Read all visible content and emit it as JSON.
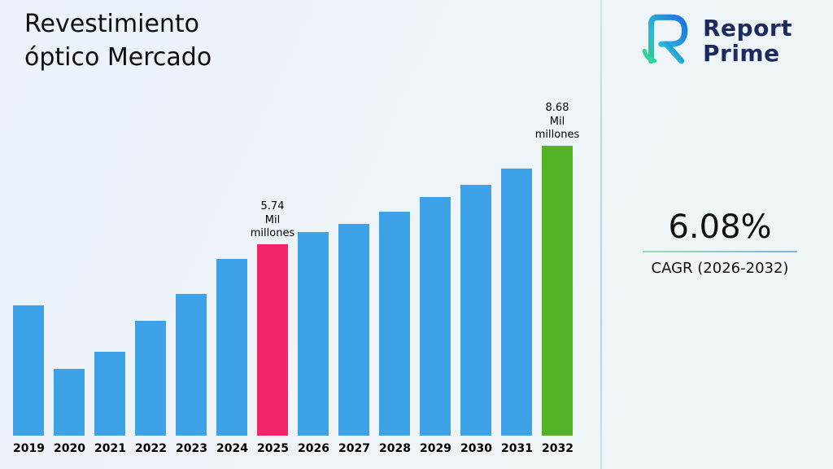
{
  "title": {
    "line1": "Revestimiento",
    "line2": "óptico Mercado"
  },
  "logo": {
    "line1": "Report",
    "line2": "Prime"
  },
  "cagr": {
    "value": "6.08%",
    "label": "CAGR (2026-2032)"
  },
  "chart_data": {
    "type": "bar",
    "title": "Revestimiento óptico Mercado",
    "xlabel": "",
    "ylabel": "",
    "unit": "Mil millones",
    "ylim": [
      0,
      9
    ],
    "grid": false,
    "legend": "none",
    "categories": [
      "2019",
      "2020",
      "2021",
      "2022",
      "2023",
      "2024",
      "2025",
      "2026",
      "2027",
      "2028",
      "2029",
      "2030",
      "2031",
      "2032"
    ],
    "values": [
      3.9,
      2.0,
      2.5,
      3.45,
      4.25,
      5.3,
      5.74,
      6.09,
      6.35,
      6.7,
      7.15,
      7.5,
      8.0,
      8.68
    ],
    "bar_color_default": "#3DA2E8",
    "highlights": {
      "2025": "#F4246A",
      "2032": "#54B227"
    },
    "annotations": [
      {
        "category": "2025",
        "lines": [
          "5.74",
          "Mil",
          "millones"
        ]
      },
      {
        "category": "2032",
        "lines": [
          "8.68",
          "Mil",
          "millones"
        ]
      }
    ]
  }
}
